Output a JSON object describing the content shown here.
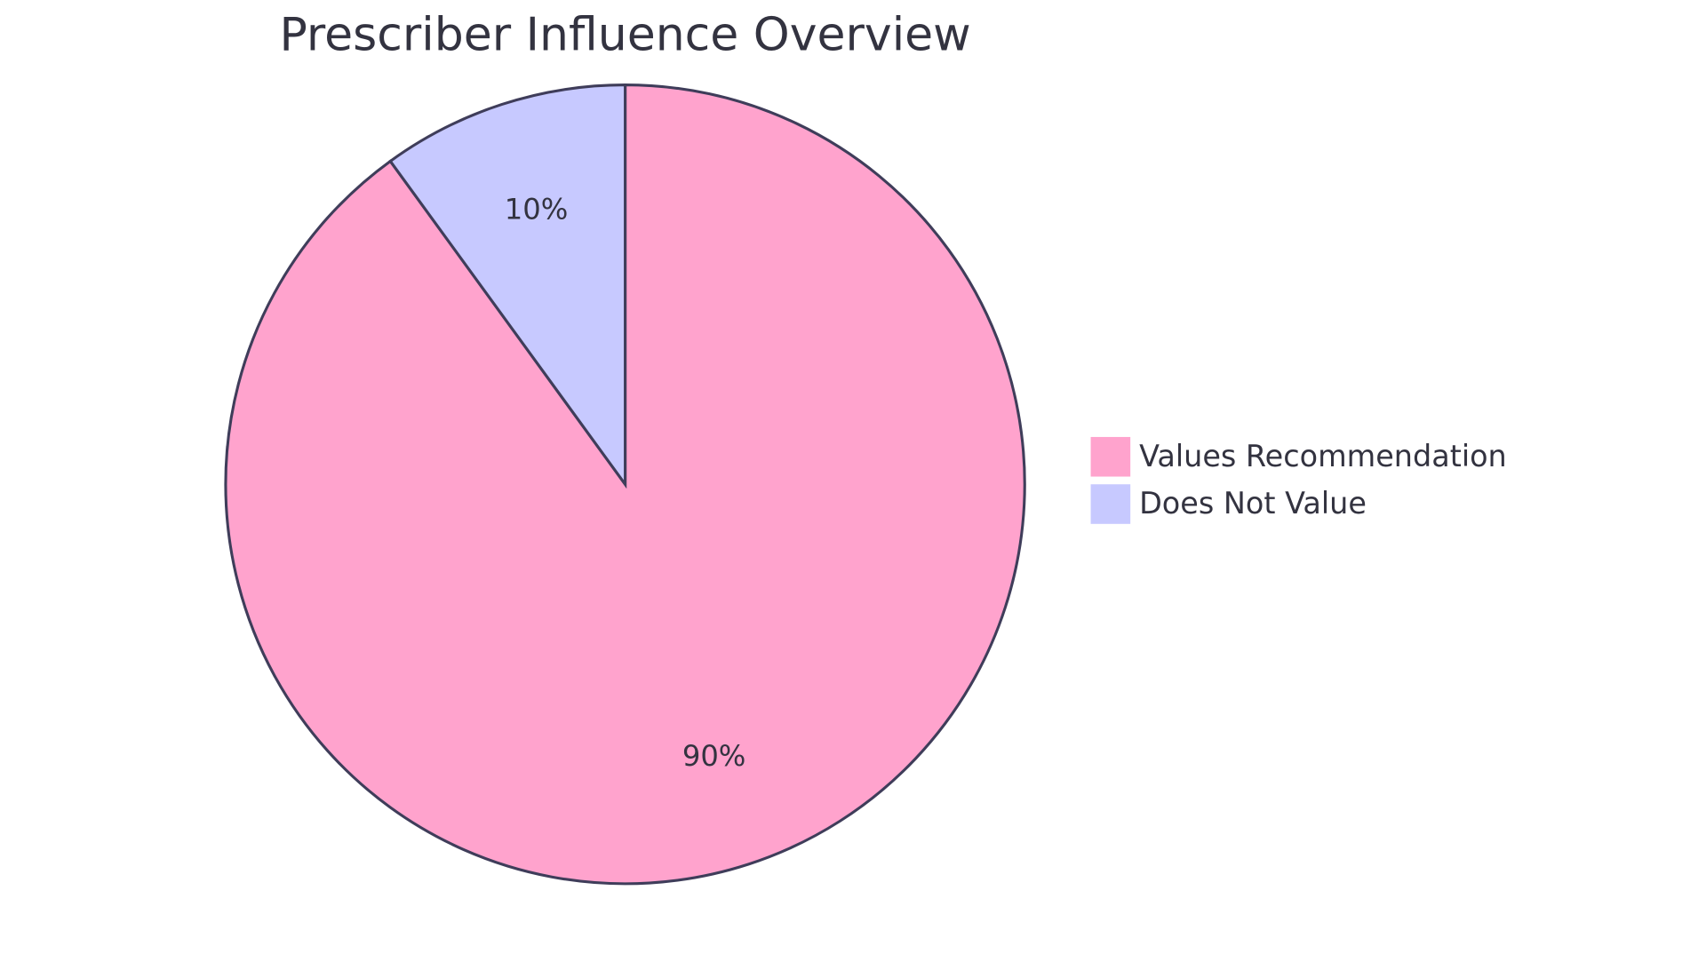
{
  "chart_data": {
    "type": "pie",
    "title": "Prescriber Influence Overview",
    "categories": [
      "Values Recommendation",
      "Does Not Value"
    ],
    "values": [
      90,
      10
    ],
    "value_labels": [
      "90%",
      "10%"
    ],
    "colors": [
      "#ffa3cd",
      "#c7c9ff"
    ],
    "legend": "right"
  }
}
